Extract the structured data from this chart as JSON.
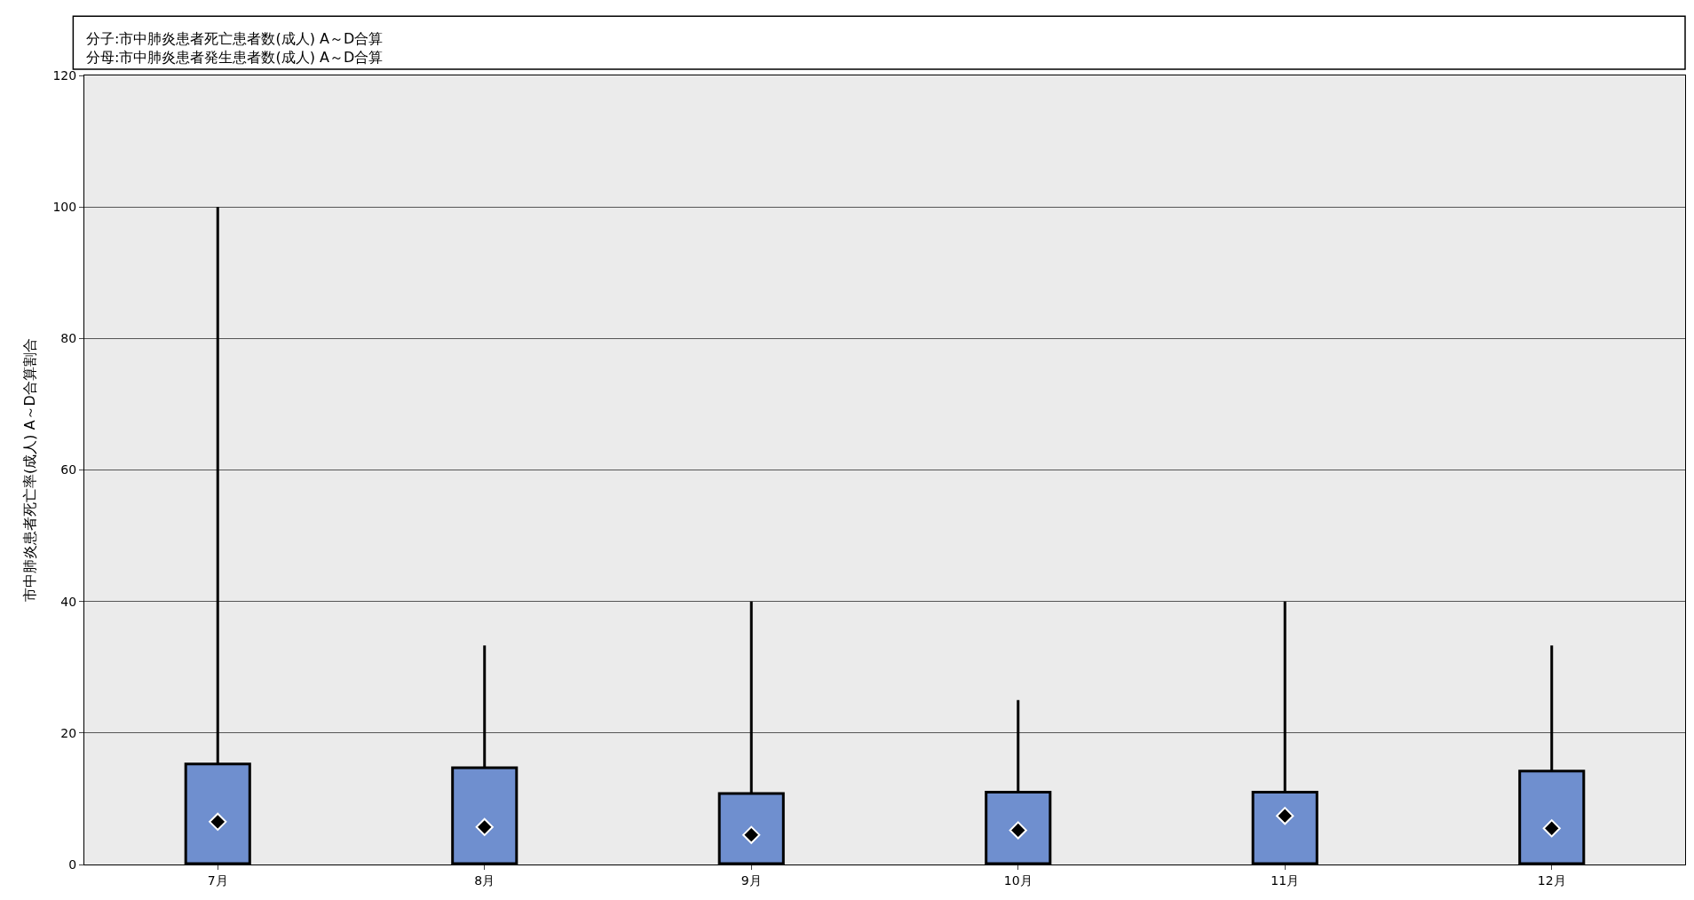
{
  "chart_data": {
    "type": "box",
    "annotations": [
      "分子:市中肺炎患者死亡患者数(成人) A～D合算",
      "分母:市中肺炎患者発生患者数(成人) A～D合算"
    ],
    "ylabel": "市中肺炎患者死亡率(成人) A～D合算割合",
    "categories": [
      "7月",
      "8月",
      "9月",
      "10月",
      "11月",
      "12月"
    ],
    "series": [
      {
        "color": "#6f8fcf",
        "boxes": [
          {
            "q1": 0,
            "median": 0,
            "q3": 15.3,
            "high": 100,
            "mean": 6.5
          },
          {
            "q1": 0,
            "median": 0,
            "q3": 14.7,
            "high": 33.3,
            "mean": 5.7
          },
          {
            "q1": 0,
            "median": 0,
            "q3": 10.8,
            "high": 40,
            "mean": 4.5
          },
          {
            "q1": 0,
            "median": 0,
            "q3": 11,
            "high": 25,
            "mean": 5.2
          },
          {
            "q1": 0,
            "median": 0,
            "q3": 11,
            "high": 40,
            "mean": 7.4
          },
          {
            "q1": 0,
            "median": 0,
            "q3": 14.2,
            "high": 33.3,
            "mean": 5.5
          }
        ]
      }
    ],
    "ylim": [
      0,
      120
    ],
    "yticks": [
      0,
      20,
      40,
      60,
      80,
      100,
      120
    ],
    "grid": "y",
    "marker": "diamond"
  }
}
